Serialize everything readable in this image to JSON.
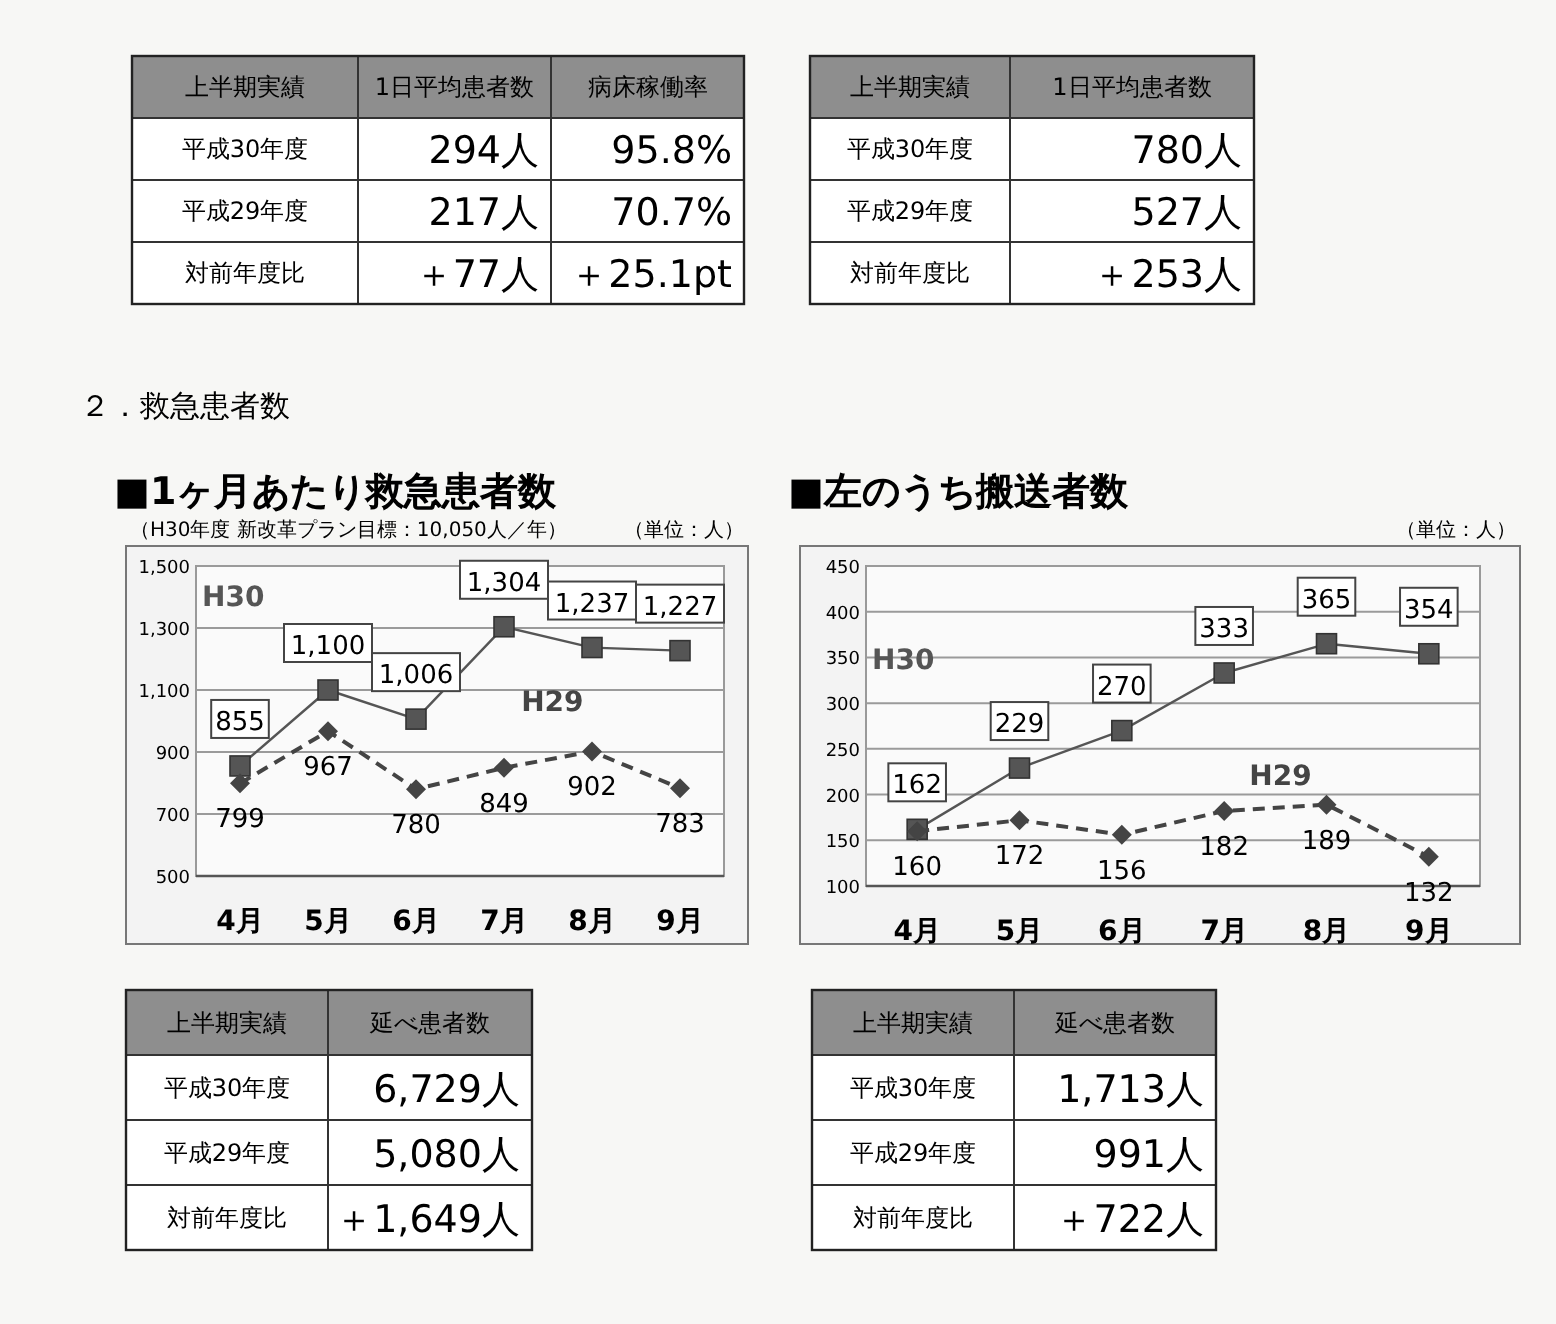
{
  "chart_data": [
    {
      "type": "other",
      "title": "上半期実績",
      "categories": [
        "1日平均患者数",
        "病床稼働率"
      ],
      "y_categories": [
        "平成30年度",
        "平成29年度",
        "対前年度比"
      ],
      "cell_labels": [
        [
          "294人",
          "95.8%"
        ],
        [
          "217人",
          "70.7%"
        ],
        [
          "＋77人",
          "＋25.1pt"
        ]
      ]
    },
    {
      "type": "other",
      "title": "上半期実績",
      "categories": [
        "1日平均患者数"
      ],
      "y_categories": [
        "平成30年度",
        "平成29年度",
        "対前年度比"
      ],
      "cell_labels": [
        [
          "780人"
        ],
        [
          "527人"
        ],
        [
          "＋253人"
        ]
      ]
    },
    {
      "type": "other",
      "title": "２．救急患者数"
    },
    {
      "type": "line",
      "title": "■1ヶ月あたり救急患者数",
      "subtitle": "（H30年度 新改革プラン目標：10,050人／年）",
      "annotations": [
        "（単位：人）"
      ],
      "categories": [
        "4月",
        "5月",
        "6月",
        "7月",
        "8月",
        "9月"
      ],
      "ylim": [
        500,
        1500
      ],
      "yticks": [
        {
          "value": 500,
          "label": "500"
        },
        {
          "value": 700,
          "label": "700"
        },
        {
          "value": 900,
          "label": "900"
        },
        {
          "value": 1100,
          "label": "1,100"
        },
        {
          "value": 1300,
          "label": "1,300"
        },
        {
          "value": 1500,
          "label": "1,500"
        }
      ],
      "grid": "y",
      "legend": false,
      "series": [
        {
          "name": "H30",
          "color": "#555555",
          "marker": "square",
          "line_style": "solid",
          "values": [
            855,
            1100,
            1006,
            1304,
            1237,
            1227
          ],
          "value_labels": [
            "855",
            "1,100",
            "1,006",
            "1,304",
            "1,237",
            "1,227"
          ]
        },
        {
          "name": "H29",
          "color": "#444444",
          "marker": "diamond",
          "line_style": "dashed",
          "values": [
            799,
            967,
            780,
            849,
            902,
            783
          ],
          "value_labels": [
            "799",
            "967",
            "780",
            "849",
            "902",
            "783"
          ]
        }
      ]
    },
    {
      "type": "line",
      "title": "■左のうち搬送者数",
      "annotations": [
        "（単位：人）"
      ],
      "categories": [
        "4月",
        "5月",
        "6月",
        "7月",
        "8月",
        "9月"
      ],
      "ylim": [
        100,
        450
      ],
      "yticks": [
        100,
        150,
        200,
        250,
        300,
        350,
        400,
        450
      ],
      "grid": "y",
      "data_labels": true,
      "legend": false,
      "series": [
        {
          "name": "H30",
          "color": "#555555",
          "marker": "square",
          "line_style": "solid",
          "values": [
            162,
            229,
            270,
            333,
            365,
            354
          ]
        },
        {
          "name": "H29",
          "color": "#444444",
          "marker": "diamond",
          "line_style": "dashed",
          "values": [
            160,
            172,
            156,
            182,
            189,
            132
          ]
        }
      ]
    },
    {
      "type": "other",
      "title": "上半期実績",
      "categories": [
        "延べ患者数"
      ],
      "y_categories": [
        "平成30年度",
        "平成29年度",
        "対前年度比"
      ],
      "cell_labels": [
        [
          "6,729人"
        ],
        [
          "5,080人"
        ],
        [
          "＋1,649人"
        ]
      ]
    },
    {
      "type": "other",
      "title": "上半期実績",
      "categories": [
        "延べ患者数"
      ],
      "y_categories": [
        "平成30年度",
        "平成29年度",
        "対前年度比"
      ],
      "cell_labels": [
        [
          "1,713人"
        ],
        [
          "991人"
        ],
        [
          "＋722人"
        ]
      ]
    }
  ]
}
